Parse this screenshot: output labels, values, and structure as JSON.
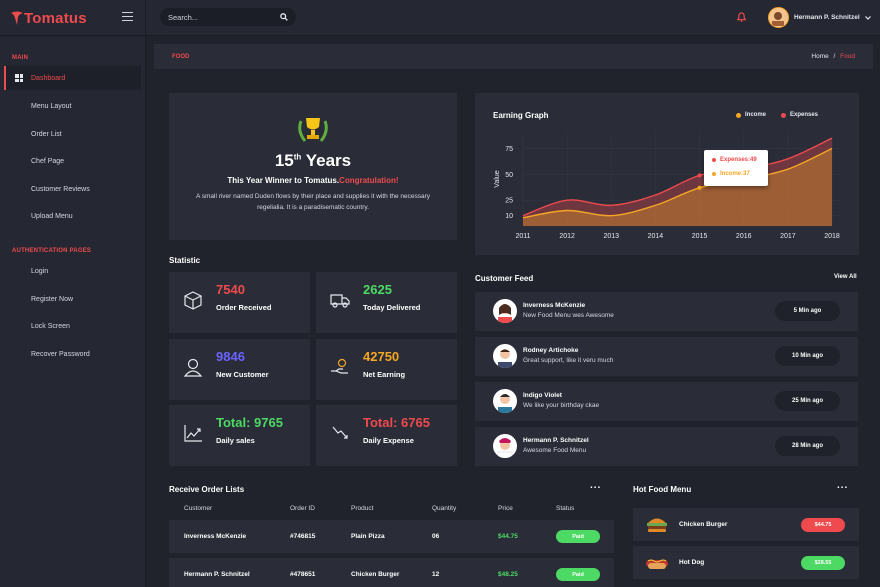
{
  "brand": {
    "name": "Tomatus",
    "accent": "#ef4a4d"
  },
  "search": {
    "placeholder": "Search..."
  },
  "user": {
    "name": "Hermann P. Schnitzel"
  },
  "sidebar": {
    "sections": [
      "MAIN",
      "AUTHENTICATION PAGES"
    ],
    "main_items": [
      "Dashboard",
      "Menu Layout",
      "Order List",
      "Chef Page",
      "Customer Reviews",
      "Upload Menu"
    ],
    "auth_items": [
      "Login",
      "Register Now",
      "Lock Screen",
      "Recover Password"
    ]
  },
  "breadcrumb": {
    "page": "FOOD",
    "home": "Home",
    "sep": "/",
    "current": "Food"
  },
  "winner": {
    "years": "15",
    "suffix": "th",
    "word": "Years",
    "line_a": "This Year Winner to Tomatus.",
    "line_b": "Congratulation!",
    "desc": "A small river named Duden flows by their place and supplies it with the necessary regelialia. It is a paradisematic country."
  },
  "graph": {
    "title": "Earning Graph",
    "legend_income": "Income",
    "legend_expenses": "Expenses",
    "tooltip_expenses": "Expenses:49",
    "tooltip_income": "Income:37"
  },
  "chart_data": {
    "type": "area",
    "title": "Earning Graph",
    "xlabel": "",
    "ylabel": "Value",
    "x": [
      "2011",
      "2012",
      "2013",
      "2014",
      "2015",
      "2016",
      "2017",
      "2018"
    ],
    "yticks": [
      10,
      25,
      50,
      75
    ],
    "ylim": [
      0,
      90
    ],
    "legend": "top-right",
    "series": [
      {
        "name": "Expenses",
        "color": "#ef4a4d",
        "values": [
          10,
          25,
          20,
          30,
          49,
          55,
          65,
          85
        ]
      },
      {
        "name": "Income",
        "color": "#f5a623",
        "values": [
          8,
          15,
          10,
          20,
          37,
          45,
          55,
          75
        ]
      }
    ]
  },
  "statistic": {
    "title": "Statistic",
    "cards": [
      {
        "value": "7540",
        "label": "Order Received",
        "color": "#ef4a4d",
        "icon": "box-icon"
      },
      {
        "value": "2625",
        "label": "Today Delivered",
        "color": "#4cd964",
        "icon": "truck-icon"
      },
      {
        "value": "9846",
        "label": "New Customer",
        "color": "#6c63ff",
        "icon": "customer-icon"
      },
      {
        "value": "42750",
        "label": "Net Earning",
        "color": "#f5a623",
        "icon": "money-hand-icon"
      },
      {
        "value": "Total: 9765",
        "label": "Daily sales",
        "color": "#4cd964",
        "icon": "trend-up-icon"
      },
      {
        "value": "Total: 6765",
        "label": "Daily Expense",
        "color": "#ef4a4d",
        "icon": "trend-down-icon"
      }
    ]
  },
  "feed": {
    "title": "Customer Feed",
    "view_all": "View All",
    "items": [
      {
        "name": "Inverness McKenzie",
        "msg": "New Food Menu wes Awesome",
        "time": "5 Min ago"
      },
      {
        "name": "Rodney Artichoke",
        "msg": "Great support, like it veru much",
        "time": "10 Min ago"
      },
      {
        "name": "Indigo Violet",
        "msg": "We like your birthday ckae",
        "time": "25 Min ago"
      },
      {
        "name": "Hermann P. Schnitzel",
        "msg": "Awesome Food Menu",
        "time": "28 Min ago"
      }
    ]
  },
  "orders": {
    "title": "Receive Order Lists",
    "menu": "...",
    "headers": [
      "Customer",
      "Order ID",
      "Product",
      "Quantity",
      "Price",
      "Status"
    ],
    "rows": [
      {
        "customer": "Inverness McKenzie",
        "id": "#746815",
        "product": "Plain Pizza",
        "qty": "06",
        "price": "$44.75",
        "status": "Paid"
      },
      {
        "customer": "Hermann P. Schnitzel",
        "id": "#478651",
        "product": "Chicken Burger",
        "qty": "12",
        "price": "$48.25",
        "status": "Paid"
      }
    ]
  },
  "hot_food": {
    "title": "Hot Food Menu",
    "menu": "...",
    "items": [
      {
        "name": "Chicken Burger",
        "price": "$44.75",
        "color": "#ef4a4d"
      },
      {
        "name": "Hot Dog",
        "price": "$28.55",
        "color": "#4cd964"
      }
    ]
  }
}
